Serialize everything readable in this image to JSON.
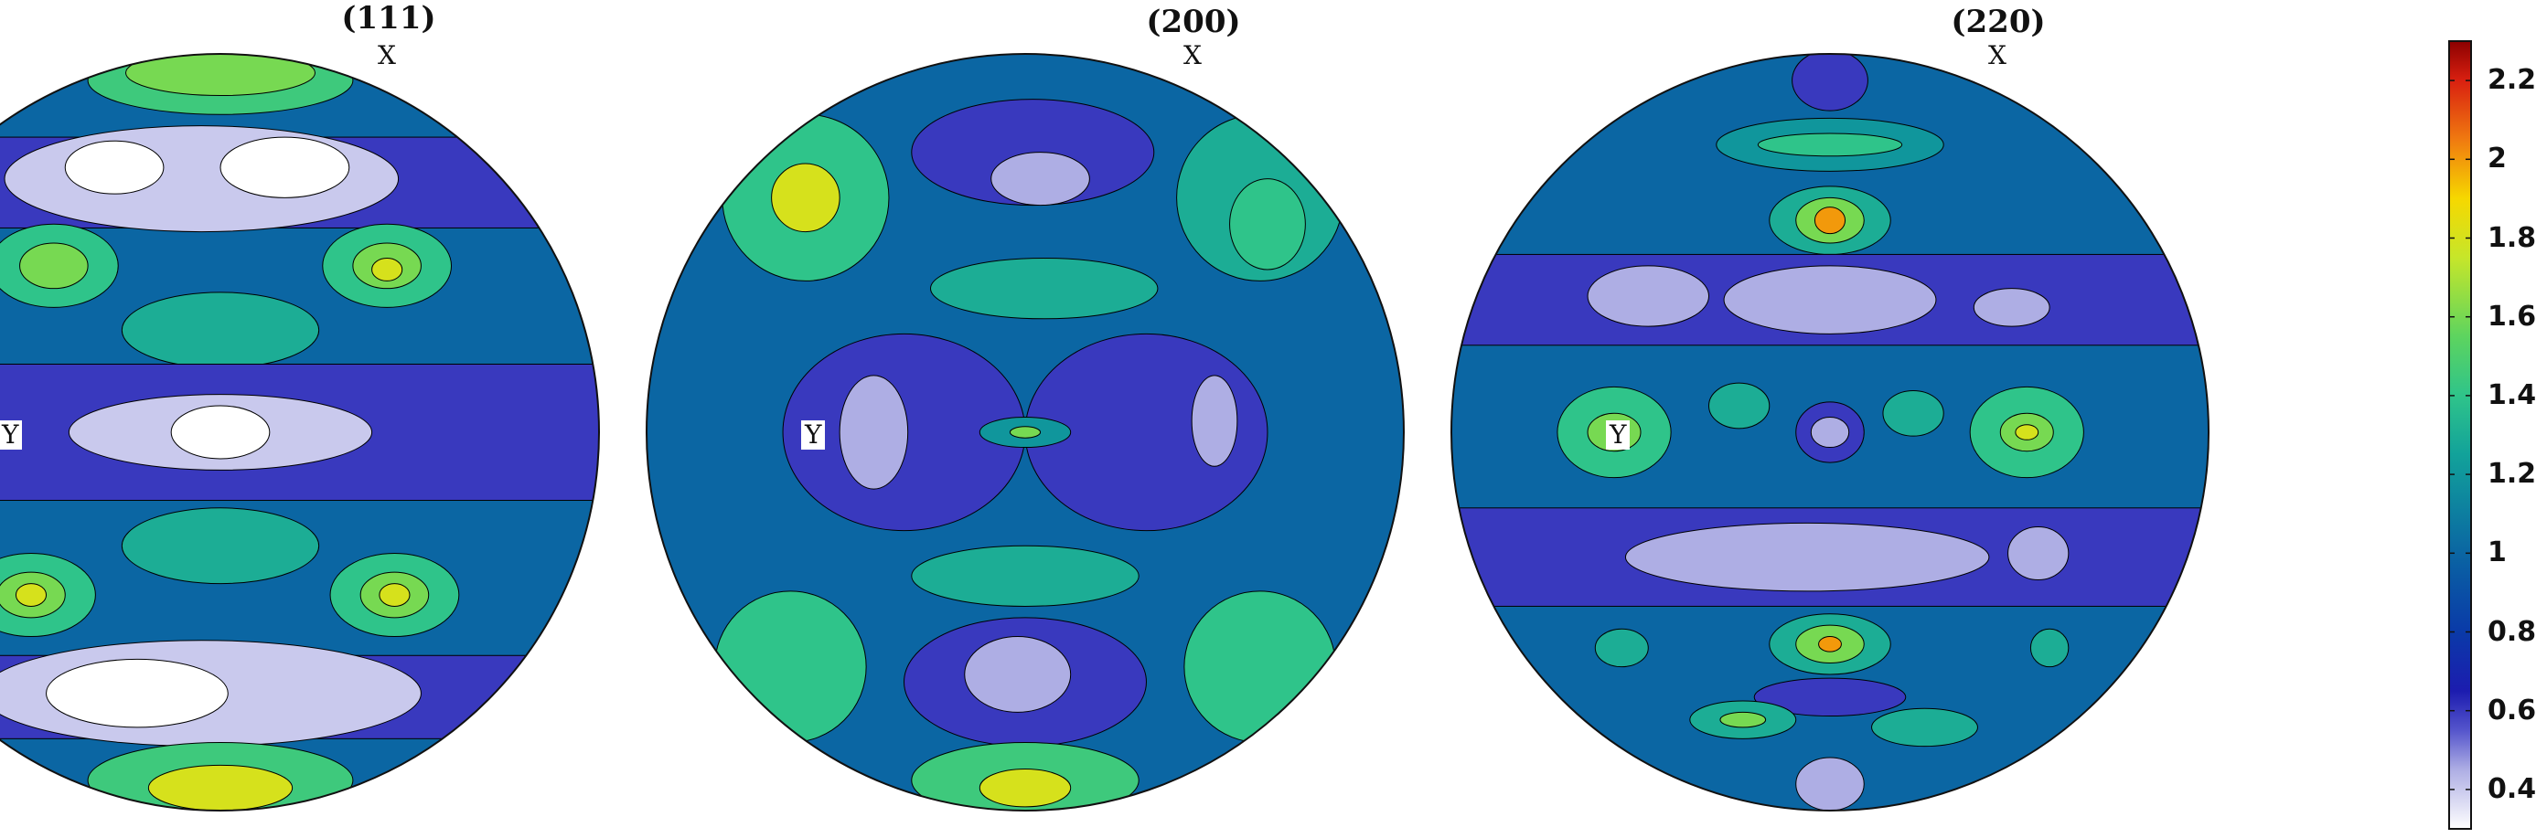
{
  "chart_data": {
    "type": "heatmap",
    "subtype": "pole-figure contour plot",
    "plots": [
      {
        "title": "(111)",
        "axis_labels": {
          "top": "X",
          "left": "Y"
        },
        "regions": [
          {
            "level": 1.0,
            "kind": "band",
            "cy": -0.84,
            "h": 0.2
          },
          {
            "level": 1.45,
            "kind": "spot",
            "cx": 0.0,
            "cy": -0.93,
            "rx": 0.35,
            "ry": 0.09
          },
          {
            "level": 1.6,
            "kind": "spot",
            "cx": 0.0,
            "cy": -0.95,
            "rx": 0.25,
            "ry": 0.06
          },
          {
            "level": 0.6,
            "kind": "band",
            "cy": -0.66,
            "h": 0.24
          },
          {
            "level": 0.4,
            "kind": "spot",
            "cx": -0.05,
            "cy": -0.67,
            "rx": 0.52,
            "ry": 0.14
          },
          {
            "level": 0.3,
            "kind": "spot",
            "cx": -0.28,
            "cy": -0.7,
            "rx": 0.13,
            "ry": 0.07
          },
          {
            "level": 0.3,
            "kind": "spot",
            "cx": 0.17,
            "cy": -0.7,
            "rx": 0.17,
            "ry": 0.08
          },
          {
            "level": 1.4,
            "kind": "spot",
            "cx": -0.44,
            "cy": -0.44,
            "rx": 0.17,
            "ry": 0.11
          },
          {
            "level": 1.6,
            "kind": "spot",
            "cx": -0.44,
            "cy": -0.44,
            "rx": 0.09,
            "ry": 0.06
          },
          {
            "level": 1.4,
            "kind": "spot",
            "cx": 0.44,
            "cy": -0.44,
            "rx": 0.17,
            "ry": 0.11
          },
          {
            "level": 1.6,
            "kind": "spot",
            "cx": 0.44,
            "cy": -0.44,
            "rx": 0.09,
            "ry": 0.06
          },
          {
            "level": 1.8,
            "kind": "spot",
            "cx": 0.44,
            "cy": -0.43,
            "rx": 0.04,
            "ry": 0.03
          },
          {
            "level": 1.3,
            "kind": "spot",
            "cx": 0.0,
            "cy": -0.27,
            "rx": 0.26,
            "ry": 0.1
          },
          {
            "level": 0.6,
            "kind": "band",
            "cy": 0.0,
            "h": 0.36
          },
          {
            "level": 0.4,
            "kind": "spot",
            "cx": 0.0,
            "cy": 0.0,
            "rx": 0.4,
            "ry": 0.1
          },
          {
            "level": 0.3,
            "kind": "spot",
            "cx": 0.0,
            "cy": 0.0,
            "rx": 0.13,
            "ry": 0.07
          },
          {
            "level": 1.3,
            "kind": "spot",
            "cx": 0.0,
            "cy": 0.3,
            "rx": 0.26,
            "ry": 0.1
          },
          {
            "level": 1.4,
            "kind": "spot",
            "cx": -0.5,
            "cy": 0.43,
            "rx": 0.17,
            "ry": 0.11
          },
          {
            "level": 1.6,
            "kind": "spot",
            "cx": -0.5,
            "cy": 0.43,
            "rx": 0.09,
            "ry": 0.06
          },
          {
            "level": 1.8,
            "kind": "spot",
            "cx": -0.5,
            "cy": 0.43,
            "rx": 0.04,
            "ry": 0.03
          },
          {
            "level": 1.4,
            "kind": "spot",
            "cx": 0.46,
            "cy": 0.43,
            "rx": 0.17,
            "ry": 0.11
          },
          {
            "level": 1.6,
            "kind": "spot",
            "cx": 0.46,
            "cy": 0.43,
            "rx": 0.09,
            "ry": 0.06
          },
          {
            "level": 1.8,
            "kind": "spot",
            "cx": 0.46,
            "cy": 0.43,
            "rx": 0.04,
            "ry": 0.03
          },
          {
            "level": 0.6,
            "kind": "band",
            "cy": 0.7,
            "h": 0.22
          },
          {
            "level": 0.4,
            "kind": "spot",
            "cx": -0.05,
            "cy": 0.69,
            "rx": 0.58,
            "ry": 0.14
          },
          {
            "level": 0.3,
            "kind": "spot",
            "cx": -0.22,
            "cy": 0.69,
            "rx": 0.24,
            "ry": 0.09
          },
          {
            "level": 1.45,
            "kind": "spot",
            "cx": 0.0,
            "cy": 0.92,
            "rx": 0.35,
            "ry": 0.1
          },
          {
            "level": 1.8,
            "kind": "spot",
            "cx": 0.0,
            "cy": 0.94,
            "rx": 0.19,
            "ry": 0.06
          }
        ]
      },
      {
        "title": "(200)",
        "axis_labels": {
          "top": "X",
          "left": "Y"
        },
        "regions": [
          {
            "level": 1.4,
            "kind": "spot",
            "cx": -0.58,
            "cy": -0.62,
            "rx": 0.22,
            "ry": 0.22
          },
          {
            "level": 1.8,
            "kind": "spot",
            "cx": -0.58,
            "cy": -0.62,
            "rx": 0.09,
            "ry": 0.09
          },
          {
            "level": 1.3,
            "kind": "spot",
            "cx": 0.62,
            "cy": -0.62,
            "rx": 0.22,
            "ry": 0.22
          },
          {
            "level": 1.4,
            "kind": "spot",
            "cx": 0.64,
            "cy": -0.55,
            "rx": 0.1,
            "ry": 0.12
          },
          {
            "level": 0.6,
            "kind": "spot",
            "cx": 0.02,
            "cy": -0.74,
            "rx": 0.32,
            "ry": 0.14
          },
          {
            "level": 0.45,
            "kind": "spot",
            "cx": 0.04,
            "cy": -0.67,
            "rx": 0.13,
            "ry": 0.07
          },
          {
            "level": 1.3,
            "kind": "spot",
            "cx": 0.05,
            "cy": -0.38,
            "rx": 0.3,
            "ry": 0.08
          },
          {
            "level": 0.6,
            "kind": "spot",
            "cx": -0.32,
            "cy": 0.0,
            "rx": 0.32,
            "ry": 0.26
          },
          {
            "level": 0.45,
            "kind": "spot",
            "cx": -0.4,
            "cy": 0.0,
            "rx": 0.09,
            "ry": 0.15
          },
          {
            "level": 0.6,
            "kind": "spot",
            "cx": 0.32,
            "cy": 0.0,
            "rx": 0.32,
            "ry": 0.26
          },
          {
            "level": 0.45,
            "kind": "spot",
            "cx": 0.5,
            "cy": -0.03,
            "rx": 0.06,
            "ry": 0.12
          },
          {
            "level": 1.2,
            "kind": "spot",
            "cx": 0.0,
            "cy": 0.0,
            "rx": 0.12,
            "ry": 0.04
          },
          {
            "level": 1.6,
            "kind": "spot",
            "cx": 0.0,
            "cy": 0.0,
            "rx": 0.04,
            "ry": 0.015
          },
          {
            "level": 1.3,
            "kind": "spot",
            "cx": 0.0,
            "cy": 0.38,
            "rx": 0.3,
            "ry": 0.08
          },
          {
            "level": 0.6,
            "kind": "spot",
            "cx": 0.0,
            "cy": 0.66,
            "rx": 0.32,
            "ry": 0.17
          },
          {
            "level": 0.45,
            "kind": "spot",
            "cx": -0.02,
            "cy": 0.64,
            "rx": 0.14,
            "ry": 0.1
          },
          {
            "level": 1.4,
            "kind": "spot",
            "cx": -0.62,
            "cy": 0.62,
            "rx": 0.2,
            "ry": 0.2
          },
          {
            "level": 1.4,
            "kind": "spot",
            "cx": 0.62,
            "cy": 0.62,
            "rx": 0.2,
            "ry": 0.2
          },
          {
            "level": 1.45,
            "kind": "spot",
            "cx": 0.0,
            "cy": 0.92,
            "rx": 0.3,
            "ry": 0.1
          },
          {
            "level": 1.8,
            "kind": "spot",
            "cx": 0.0,
            "cy": 0.94,
            "rx": 0.12,
            "ry": 0.05
          }
        ]
      },
      {
        "title": "(220)",
        "axis_labels": {
          "top": "X",
          "left": "Y"
        },
        "regions": [
          {
            "level": 0.6,
            "kind": "spot",
            "cx": 0.0,
            "cy": -0.93,
            "rx": 0.1,
            "ry": 0.08
          },
          {
            "level": 1.2,
            "kind": "spot",
            "cx": 0.0,
            "cy": -0.76,
            "rx": 0.3,
            "ry": 0.07
          },
          {
            "level": 1.4,
            "kind": "spot",
            "cx": 0.0,
            "cy": -0.76,
            "rx": 0.19,
            "ry": 0.03
          },
          {
            "level": 1.3,
            "kind": "spot",
            "cx": 0.0,
            "cy": -0.56,
            "rx": 0.16,
            "ry": 0.09
          },
          {
            "level": 1.6,
            "kind": "spot",
            "cx": 0.0,
            "cy": -0.56,
            "rx": 0.09,
            "ry": 0.06
          },
          {
            "level": 2.0,
            "kind": "spot",
            "cx": 0.0,
            "cy": -0.56,
            "rx": 0.04,
            "ry": 0.035
          },
          {
            "level": 0.6,
            "kind": "band",
            "cy": -0.35,
            "h": 0.24
          },
          {
            "level": 0.45,
            "kind": "spot",
            "cx": 0.0,
            "cy": -0.35,
            "rx": 0.28,
            "ry": 0.09
          },
          {
            "level": 0.45,
            "kind": "spot",
            "cx": -0.48,
            "cy": -0.36,
            "rx": 0.16,
            "ry": 0.08
          },
          {
            "level": 0.45,
            "kind": "spot",
            "cx": 0.48,
            "cy": -0.33,
            "rx": 0.1,
            "ry": 0.05
          },
          {
            "level": 1.4,
            "kind": "spot",
            "cx": -0.57,
            "cy": 0.0,
            "rx": 0.15,
            "ry": 0.12
          },
          {
            "level": 1.6,
            "kind": "spot",
            "cx": -0.57,
            "cy": 0.0,
            "rx": 0.07,
            "ry": 0.05
          },
          {
            "level": 1.4,
            "kind": "spot",
            "cx": 0.52,
            "cy": 0.0,
            "rx": 0.15,
            "ry": 0.12
          },
          {
            "level": 1.6,
            "kind": "spot",
            "cx": 0.52,
            "cy": 0.0,
            "rx": 0.07,
            "ry": 0.05
          },
          {
            "level": 1.8,
            "kind": "spot",
            "cx": 0.52,
            "cy": 0.0,
            "rx": 0.03,
            "ry": 0.02
          },
          {
            "level": 1.3,
            "kind": "spot",
            "cx": -0.24,
            "cy": -0.07,
            "rx": 0.08,
            "ry": 0.06
          },
          {
            "level": 1.3,
            "kind": "spot",
            "cx": 0.22,
            "cy": -0.05,
            "rx": 0.08,
            "ry": 0.06
          },
          {
            "level": 0.6,
            "kind": "spot",
            "cx": 0.0,
            "cy": 0.0,
            "rx": 0.09,
            "ry": 0.08
          },
          {
            "level": 0.45,
            "kind": "spot",
            "cx": 0.0,
            "cy": 0.0,
            "rx": 0.05,
            "ry": 0.04
          },
          {
            "level": 0.6,
            "kind": "band",
            "cy": 0.33,
            "h": 0.26
          },
          {
            "level": 0.45,
            "kind": "spot",
            "cx": -0.06,
            "cy": 0.33,
            "rx": 0.48,
            "ry": 0.09
          },
          {
            "level": 0.45,
            "kind": "spot",
            "cx": 0.55,
            "cy": 0.32,
            "rx": 0.08,
            "ry": 0.07
          },
          {
            "level": 1.3,
            "kind": "spot",
            "cx": 0.0,
            "cy": 0.56,
            "rx": 0.16,
            "ry": 0.08
          },
          {
            "level": 1.6,
            "kind": "spot",
            "cx": 0.0,
            "cy": 0.56,
            "rx": 0.09,
            "ry": 0.05
          },
          {
            "level": 2.0,
            "kind": "spot",
            "cx": 0.0,
            "cy": 0.56,
            "rx": 0.03,
            "ry": 0.02
          },
          {
            "level": 0.6,
            "kind": "spot",
            "cx": 0.0,
            "cy": 0.7,
            "rx": 0.2,
            "ry": 0.05
          },
          {
            "level": 1.3,
            "kind": "spot",
            "cx": -0.23,
            "cy": 0.76,
            "rx": 0.14,
            "ry": 0.05
          },
          {
            "level": 1.6,
            "kind": "spot",
            "cx": -0.23,
            "cy": 0.76,
            "rx": 0.06,
            "ry": 0.02
          },
          {
            "level": 1.3,
            "kind": "spot",
            "cx": 0.25,
            "cy": 0.78,
            "rx": 0.14,
            "ry": 0.05
          },
          {
            "level": 1.3,
            "kind": "spot",
            "cx": -0.55,
            "cy": 0.57,
            "rx": 0.07,
            "ry": 0.05
          },
          {
            "level": 1.3,
            "kind": "spot",
            "cx": 0.58,
            "cy": 0.57,
            "rx": 0.05,
            "ry": 0.05
          },
          {
            "level": 0.45,
            "kind": "spot",
            "cx": 0.0,
            "cy": 0.93,
            "rx": 0.09,
            "ry": 0.07
          }
        ]
      }
    ],
    "colorbar": {
      "ticks": [
        0.4,
        0.6,
        0.8,
        1,
        1.2,
        1.4,
        1.6,
        1.8,
        2,
        2.2
      ],
      "tick_labels": [
        "0.4",
        "0.6",
        "0.8",
        "1",
        "1.2",
        "1.4",
        "1.6",
        "1.8",
        "2",
        "2.2"
      ],
      "range": [
        0.3,
        2.3
      ]
    },
    "colormap": [
      {
        "value": 0.3,
        "color": "#ffffff"
      },
      {
        "value": 0.45,
        "color": "#aeaee4"
      },
      {
        "value": 0.55,
        "color": "#5555cc"
      },
      {
        "value": 0.65,
        "color": "#1c1caf"
      },
      {
        "value": 0.8,
        "color": "#0a3aa8"
      },
      {
        "value": 0.95,
        "color": "#0a5aa4"
      },
      {
        "value": 1.1,
        "color": "#0d7ea0"
      },
      {
        "value": 1.25,
        "color": "#12a29a"
      },
      {
        "value": 1.4,
        "color": "#2fc48a"
      },
      {
        "value": 1.55,
        "color": "#5dd45f"
      },
      {
        "value": 1.75,
        "color": "#c6e62a"
      },
      {
        "value": 1.9,
        "color": "#f6d800"
      },
      {
        "value": 2.05,
        "color": "#f07a10"
      },
      {
        "value": 2.2,
        "color": "#d92010"
      },
      {
        "value": 2.3,
        "color": "#8b0000"
      }
    ],
    "background_level": 1.0
  }
}
